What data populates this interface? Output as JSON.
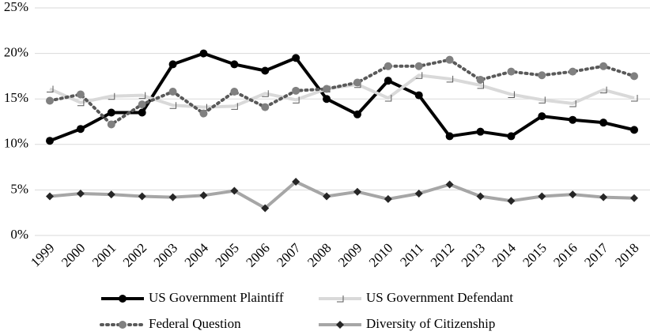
{
  "chart_data": {
    "type": "line",
    "categories": [
      "1999",
      "2000",
      "2001",
      "2002",
      "2003",
      "2004",
      "2005",
      "2006",
      "2007",
      "2008",
      "2009",
      "2010",
      "2011",
      "2012",
      "2013",
      "2014",
      "2015",
      "2016",
      "2017",
      "2018"
    ],
    "series": [
      {
        "name": "US Government Plaintiff",
        "color": "#000000",
        "marker": "circle",
        "marker_color": "#000000",
        "dash": "solid",
        "values": [
          10.4,
          11.7,
          13.5,
          13.5,
          18.8,
          20.0,
          18.8,
          18.1,
          19.5,
          15.0,
          13.3,
          17.0,
          15.4,
          10.9,
          11.4,
          10.9,
          13.1,
          12.7,
          12.4,
          11.6
        ]
      },
      {
        "name": "US Government Defendant",
        "color": "#d9d9d9",
        "marker": "triangle",
        "marker_color": "#595959",
        "dash": "solid",
        "values": [
          16.1,
          14.6,
          15.3,
          15.4,
          14.3,
          14.1,
          14.2,
          15.6,
          14.9,
          16.1,
          16.6,
          15.1,
          17.6,
          17.2,
          16.5,
          15.5,
          14.9,
          14.5,
          16.0,
          15.1
        ]
      },
      {
        "name": "Federal Question",
        "color": "#595959",
        "marker": "circle",
        "marker_color": "#808080",
        "dash": "dotted",
        "values": [
          14.8,
          15.5,
          12.2,
          14.4,
          15.8,
          13.4,
          15.8,
          14.1,
          15.9,
          16.1,
          16.8,
          18.6,
          18.6,
          19.3,
          17.1,
          18.0,
          17.6,
          18.0,
          18.6,
          17.5
        ]
      },
      {
        "name": "Diversity of Citizenship",
        "color": "#a6a6a6",
        "marker": "diamond",
        "marker_color": "#262626",
        "dash": "solid",
        "values": [
          4.3,
          4.6,
          4.5,
          4.3,
          4.2,
          4.4,
          4.9,
          3.0,
          5.9,
          4.3,
          4.8,
          4.0,
          4.6,
          5.6,
          4.3,
          3.8,
          4.3,
          4.5,
          4.2,
          4.1
        ]
      }
    ],
    "ylim": [
      0,
      25
    ],
    "yticks": [
      {
        "value": 0,
        "label": "0%"
      },
      {
        "value": 5,
        "label": "5%"
      },
      {
        "value": 10,
        "label": "10%"
      },
      {
        "value": 15,
        "label": "15%"
      },
      {
        "value": 20,
        "label": "20%"
      },
      {
        "value": 25,
        "label": "25%"
      }
    ],
    "grid": true,
    "legend": "bottom"
  }
}
